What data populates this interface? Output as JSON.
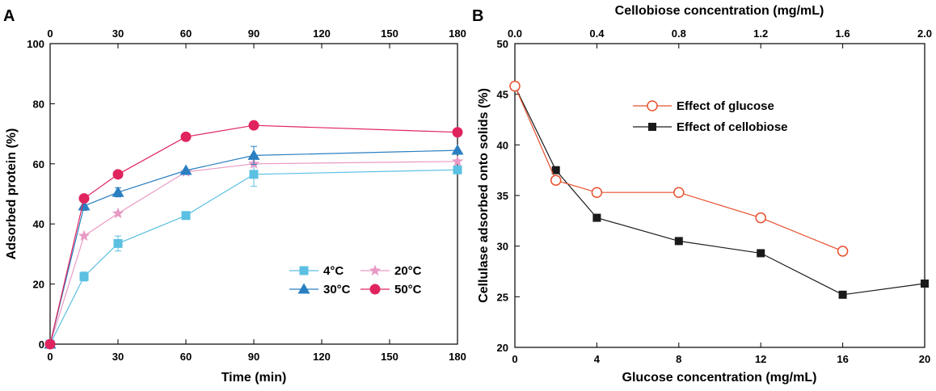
{
  "figure": {
    "panel_a_letter": "A",
    "panel_b_letter": "B"
  },
  "chart_data": [
    {
      "id": "A",
      "type": "line",
      "xlabel": "Time (min)",
      "ylabel": "Adsorbed protein (%)",
      "xlim": [
        0,
        180
      ],
      "ylim": [
        0,
        100
      ],
      "xticks": [
        0,
        30,
        60,
        90,
        120,
        150,
        180
      ],
      "xticks_top": [
        0,
        30,
        60,
        90,
        120,
        150,
        180
      ],
      "yticks": [
        0,
        20,
        40,
        60,
        80,
        100
      ],
      "grid": false,
      "legend_position": "bottom-right",
      "series": [
        {
          "name": "4°C",
          "color": "#5bc0e2",
          "marker": "square",
          "x": [
            0,
            15,
            30,
            60,
            90,
            180
          ],
          "y": [
            0,
            22.5,
            33.5,
            42.8,
            56.5,
            58
          ],
          "err": [
            0,
            1.5,
            2.5,
            1,
            4,
            1
          ]
        },
        {
          "name": "20°C",
          "color": "#e89ac4",
          "marker": "star",
          "x": [
            0,
            15,
            30,
            60,
            90,
            180
          ],
          "y": [
            0,
            36,
            43.5,
            57.3,
            60,
            60.8
          ],
          "err": [
            0,
            1,
            1,
            1,
            1,
            1
          ]
        },
        {
          "name": "30°C",
          "color": "#2a7fc1",
          "marker": "triangle",
          "x": [
            0,
            15,
            30,
            60,
            90,
            180
          ],
          "y": [
            0,
            46,
            50.5,
            57.8,
            62.8,
            64.5
          ],
          "err": [
            0,
            1.5,
            1.5,
            1,
            3,
            1
          ]
        },
        {
          "name": "50°C",
          "color": "#e0245e",
          "marker": "circle",
          "x": [
            0,
            15,
            30,
            60,
            90,
            180
          ],
          "y": [
            0,
            48.5,
            56.5,
            69,
            72.8,
            70.5
          ],
          "err": [
            0,
            1,
            1,
            1,
            1,
            1
          ]
        }
      ]
    },
    {
      "id": "B",
      "type": "line",
      "xlabel": "Glucose concentration (mg/mL)",
      "xlabel_top": "Cellobiose concentration (mg/mL)",
      "ylabel": "Cellulase adsorbed onto solids (%)",
      "xlim": [
        0,
        20
      ],
      "xlim_top": [
        0,
        2.0
      ],
      "ylim": [
        20,
        50
      ],
      "xticks": [
        "0",
        "4",
        "8",
        "12",
        "16",
        "20"
      ],
      "xticks_top": [
        "0.0",
        "0.4",
        "0.8",
        "1.2",
        "1.6",
        "2.0"
      ],
      "yticks": [
        20,
        25,
        30,
        35,
        40,
        45,
        50
      ],
      "grid": false,
      "legend_position": "upper-middle",
      "series": [
        {
          "name": "Effect of glucose",
          "color": "#e8512f",
          "marker": "open-circle",
          "x": [
            0,
            2,
            4,
            8,
            12,
            16
          ],
          "y": [
            45.8,
            36.5,
            35.3,
            35.3,
            32.8,
            29.5
          ]
        },
        {
          "name": "Effect of cellobiose",
          "color": "#1a1a1a",
          "marker": "filled-square",
          "x_top": [
            0,
            0.2,
            0.4,
            0.8,
            1.2,
            1.6,
            2.0
          ],
          "y": [
            45.8,
            37.5,
            32.8,
            30.5,
            29.3,
            25.2,
            26.3
          ]
        }
      ]
    }
  ]
}
